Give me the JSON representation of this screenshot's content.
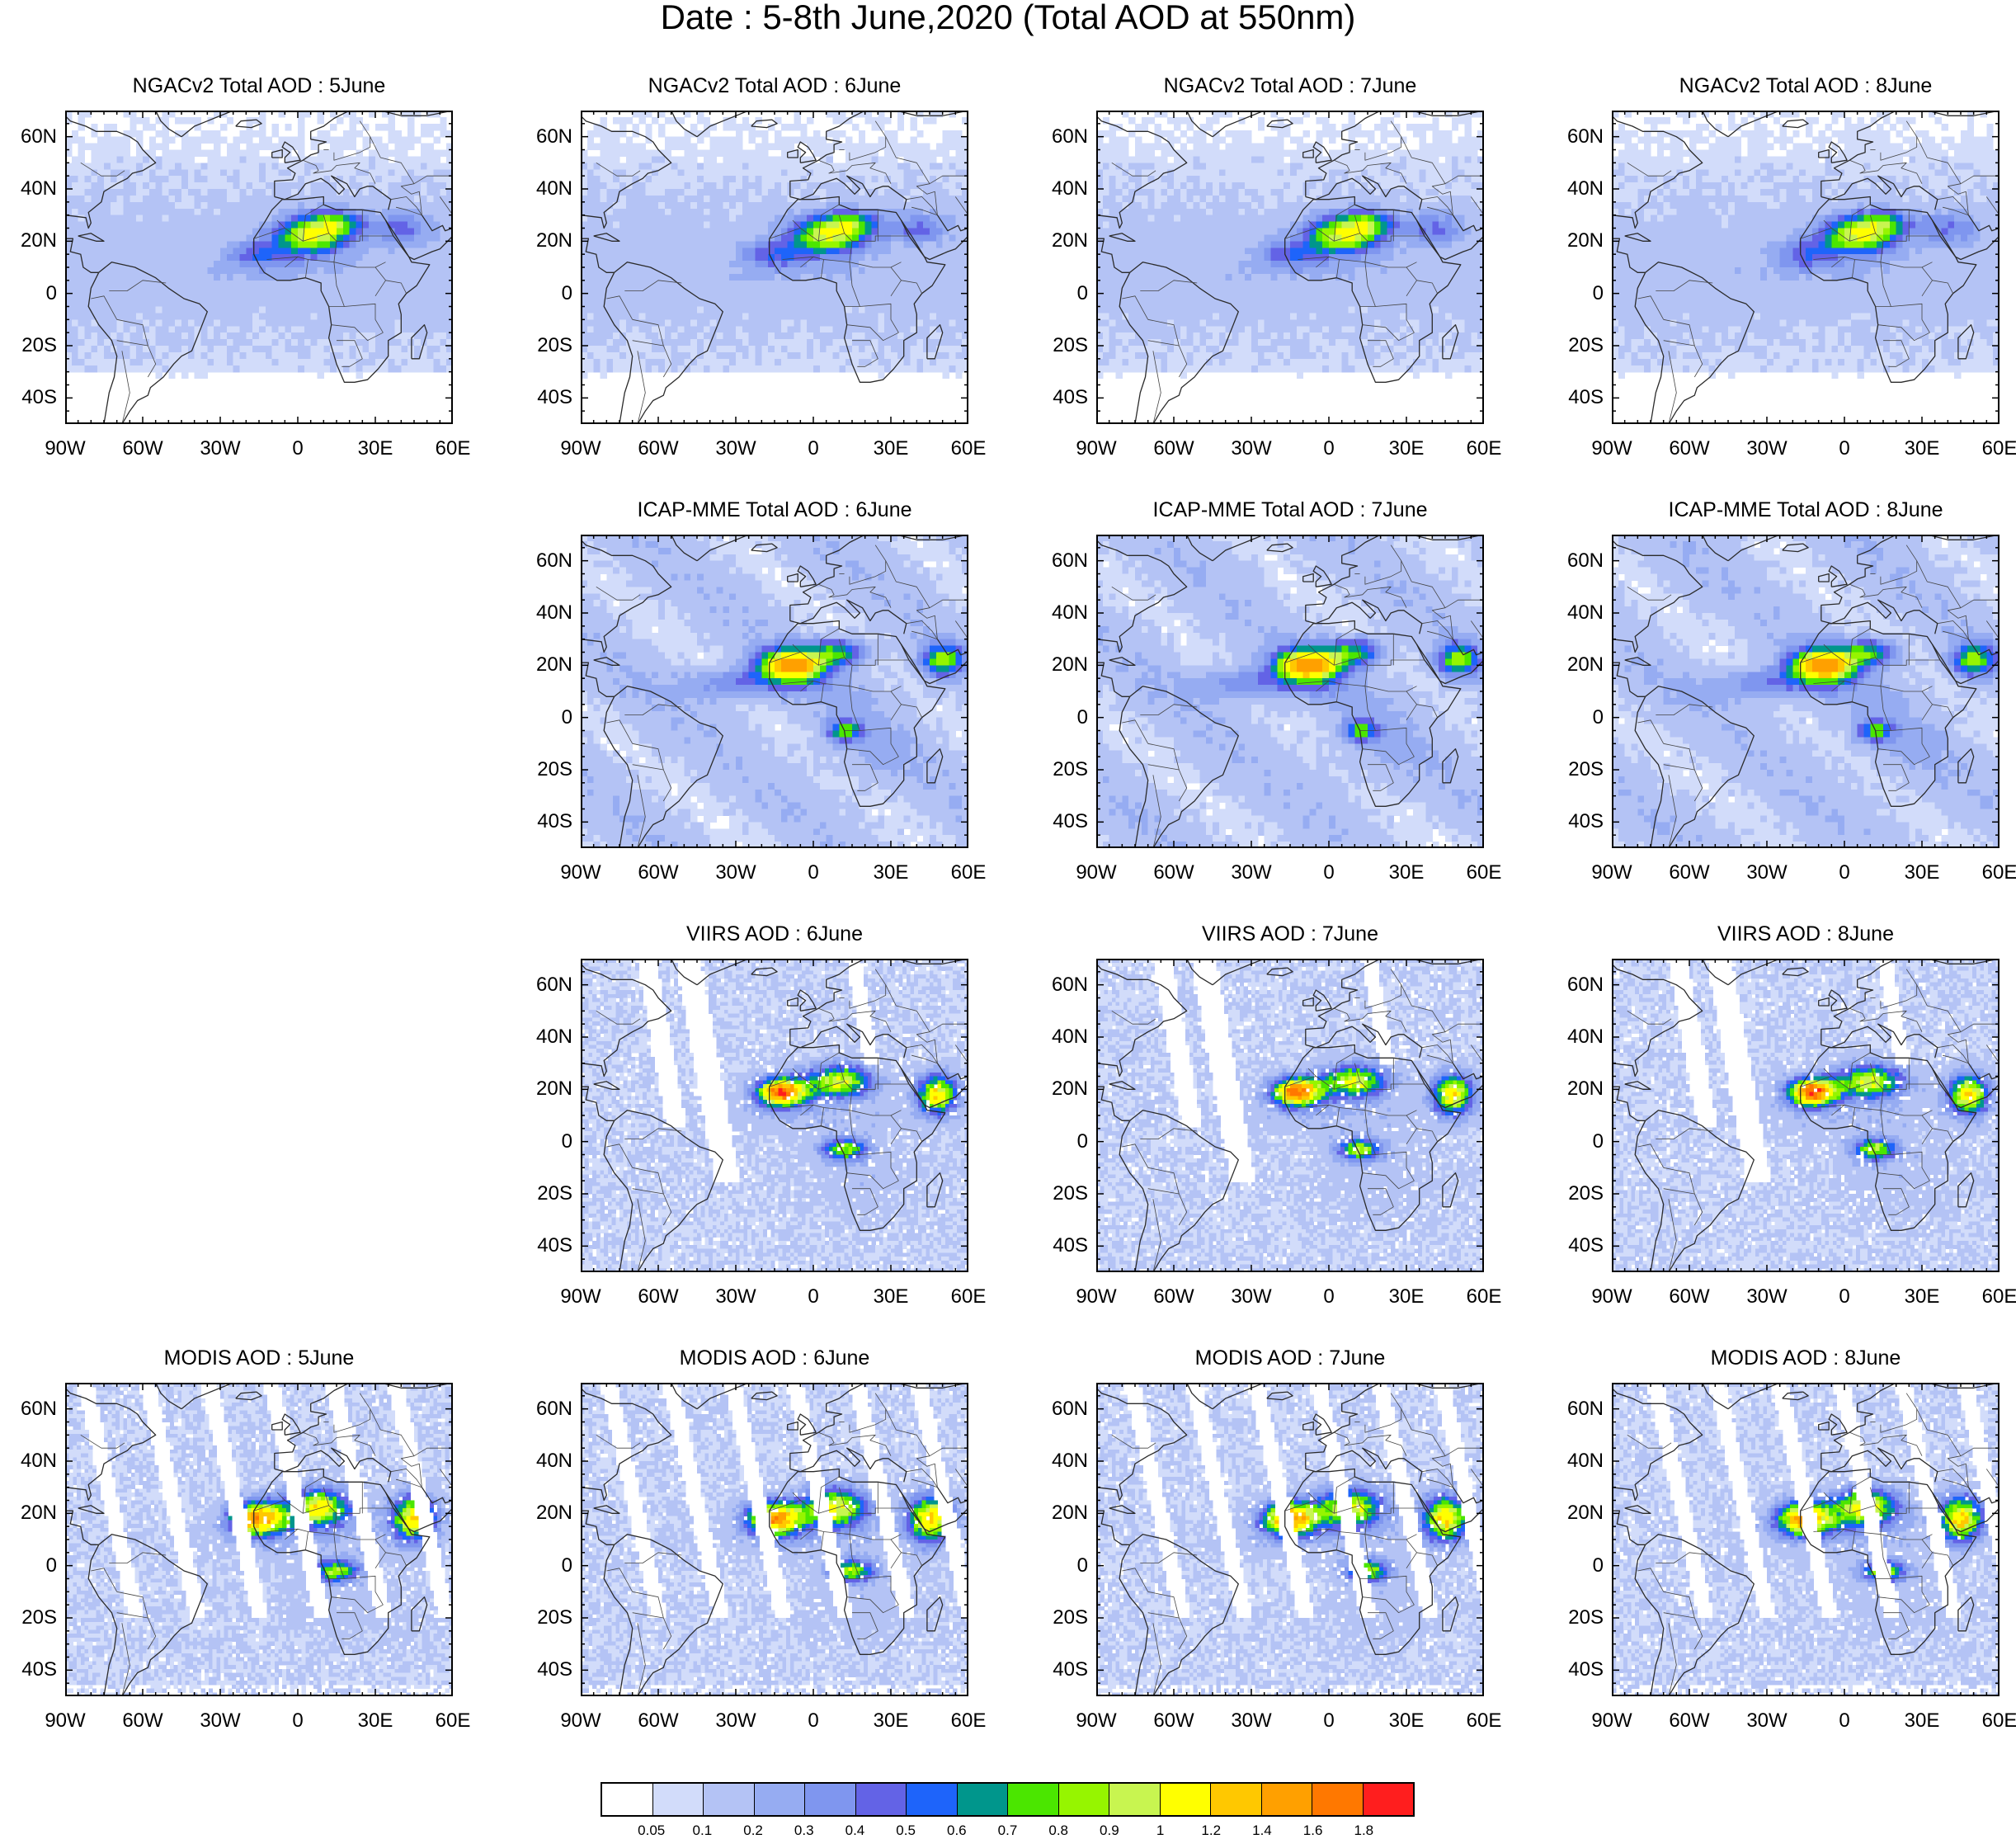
{
  "title": "Date : 5-8th June,2020 (Total AOD at 550nm)",
  "axes": {
    "lat_ticks": [
      "60N",
      "40N",
      "20N",
      "0",
      "20S",
      "40S"
    ],
    "lat_values": [
      60,
      40,
      20,
      0,
      -20,
      -40
    ],
    "lon_ticks": [
      "90W",
      "60W",
      "30W",
      "0",
      "30E",
      "60E"
    ],
    "lon_values": [
      -90,
      -60,
      -30,
      0,
      30,
      60
    ],
    "lat_range": [
      -50,
      70
    ],
    "lon_range": [
      -90,
      60
    ]
  },
  "panels": [
    {
      "id": "ngac-5",
      "title": "NGACv2 Total AOD : 5June",
      "row": 0,
      "col": 0,
      "style": "ngac",
      "seed": 11
    },
    {
      "id": "ngac-6",
      "title": "NGACv2 Total AOD : 6June",
      "row": 0,
      "col": 1,
      "style": "ngac",
      "seed": 12
    },
    {
      "id": "ngac-7",
      "title": "NGACv2 Total AOD : 7June",
      "row": 0,
      "col": 2,
      "style": "ngac",
      "seed": 13
    },
    {
      "id": "ngac-8",
      "title": "NGACv2 Total AOD : 8June",
      "row": 0,
      "col": 3,
      "style": "ngac",
      "seed": 14
    },
    {
      "id": "icap-6",
      "title": "ICAP-MME Total AOD : 6June",
      "row": 1,
      "col": 1,
      "style": "icap",
      "seed": 22
    },
    {
      "id": "icap-7",
      "title": "ICAP-MME Total AOD : 7June",
      "row": 1,
      "col": 2,
      "style": "icap",
      "seed": 23
    },
    {
      "id": "icap-8",
      "title": "ICAP-MME Total AOD : 8June",
      "row": 1,
      "col": 3,
      "style": "icap",
      "seed": 24
    },
    {
      "id": "viirs-6",
      "title": "VIIRS AOD : 6June",
      "row": 2,
      "col": 1,
      "style": "viirs",
      "seed": 32
    },
    {
      "id": "viirs-7",
      "title": "VIIRS AOD : 7June",
      "row": 2,
      "col": 2,
      "style": "viirs",
      "seed": 33
    },
    {
      "id": "viirs-8",
      "title": "VIIRS AOD : 8June",
      "row": 2,
      "col": 3,
      "style": "viirs",
      "seed": 34
    },
    {
      "id": "modis-5",
      "title": "MODIS AOD : 5June",
      "row": 3,
      "col": 0,
      "style": "modis",
      "seed": 41
    },
    {
      "id": "modis-6",
      "title": "MODIS AOD : 6June",
      "row": 3,
      "col": 1,
      "style": "modis",
      "seed": 42
    },
    {
      "id": "modis-7",
      "title": "MODIS AOD : 7June",
      "row": 3,
      "col": 2,
      "style": "modis",
      "seed": 43
    },
    {
      "id": "modis-8",
      "title": "MODIS AOD : 8June",
      "row": 3,
      "col": 3,
      "style": "modis",
      "seed": 44
    }
  ],
  "colorbar": {
    "colors": [
      "#ffffff",
      "#d2dcfa",
      "#b4c3f5",
      "#96acf2",
      "#7f96ef",
      "#6363e6",
      "#1e64fa",
      "#00968c",
      "#4be600",
      "#96f500",
      "#c8f550",
      "#ffff00",
      "#ffc800",
      "#ffa000",
      "#ff7800",
      "#ff1e1e"
    ],
    "labels": [
      "0.05",
      "0.1",
      "0.2",
      "0.3",
      "0.4",
      "0.5",
      "0.6",
      "0.7",
      "0.8",
      "0.9",
      "1",
      "1.2",
      "1.4",
      "1.6",
      "1.8"
    ]
  }
}
